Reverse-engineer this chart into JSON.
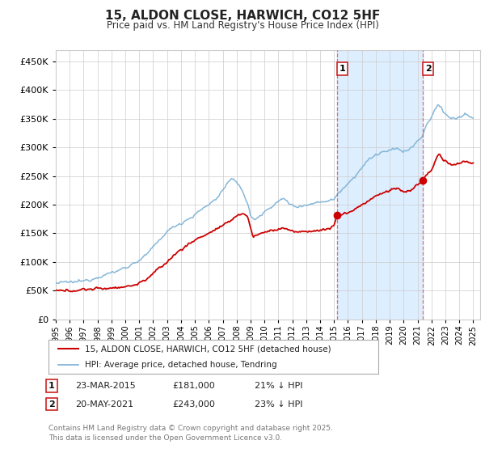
{
  "title": "15, ALDON CLOSE, HARWICH, CO12 5HF",
  "subtitle": "Price paid vs. HM Land Registry's House Price Index (HPI)",
  "legend_label_red": "15, ALDON CLOSE, HARWICH, CO12 5HF (detached house)",
  "legend_label_blue": "HPI: Average price, detached house, Tendring",
  "annotation1_date": "23-MAR-2015",
  "annotation1_price": "£181,000",
  "annotation1_hpi": "21% ↓ HPI",
  "annotation2_date": "20-MAY-2021",
  "annotation2_price": "£243,000",
  "annotation2_hpi": "23% ↓ HPI",
  "footer": "Contains HM Land Registry data © Crown copyright and database right 2025.\nThis data is licensed under the Open Government Licence v3.0.",
  "ylim": [
    0,
    470000
  ],
  "yticks": [
    0,
    50000,
    100000,
    150000,
    200000,
    250000,
    300000,
    350000,
    400000,
    450000
  ],
  "red_color": "#cc0000",
  "blue_color": "#7ab0d4",
  "shade_color": "#ddeeff",
  "grid_color": "#cccccc",
  "background_color": "#ffffff",
  "vline_color": "#e05555",
  "point1_date_year": 2015.22,
  "point2_date_year": 2021.38,
  "point1_value": 181000,
  "point2_value": 243000,
  "xmin": 1995.0,
  "xmax": 2025.5,
  "hpi_anchors": [
    [
      1995.0,
      63000
    ],
    [
      1995.5,
      64000
    ],
    [
      1996.0,
      64500
    ],
    [
      1996.5,
      65500
    ],
    [
      1997.0,
      67000
    ],
    [
      1997.5,
      70000
    ],
    [
      1998.0,
      74000
    ],
    [
      1998.5,
      78000
    ],
    [
      1999.0,
      81000
    ],
    [
      1999.5,
      85000
    ],
    [
      2000.0,
      91000
    ],
    [
      2000.5,
      96000
    ],
    [
      2001.0,
      103000
    ],
    [
      2001.5,
      112000
    ],
    [
      2002.0,
      125000
    ],
    [
      2002.5,
      140000
    ],
    [
      2003.0,
      153000
    ],
    [
      2003.5,
      162000
    ],
    [
      2004.0,
      168000
    ],
    [
      2004.5,
      175000
    ],
    [
      2005.0,
      182000
    ],
    [
      2005.5,
      192000
    ],
    [
      2006.0,
      200000
    ],
    [
      2006.5,
      210000
    ],
    [
      2007.0,
      225000
    ],
    [
      2007.3,
      237000
    ],
    [
      2007.6,
      243000
    ],
    [
      2007.9,
      240000
    ],
    [
      2008.2,
      235000
    ],
    [
      2008.5,
      220000
    ],
    [
      2008.8,
      200000
    ],
    [
      2009.0,
      180000
    ],
    [
      2009.3,
      175000
    ],
    [
      2009.6,
      178000
    ],
    [
      2010.0,
      187000
    ],
    [
      2010.5,
      198000
    ],
    [
      2011.0,
      205000
    ],
    [
      2011.3,
      210000
    ],
    [
      2011.6,
      207000
    ],
    [
      2011.9,
      200000
    ],
    [
      2012.2,
      196000
    ],
    [
      2012.5,
      198000
    ],
    [
      2012.8,
      200000
    ],
    [
      2013.2,
      200000
    ],
    [
      2013.5,
      202000
    ],
    [
      2013.8,
      204000
    ],
    [
      2014.2,
      206000
    ],
    [
      2014.5,
      207000
    ],
    [
      2014.8,
      208000
    ],
    [
      2015.0,
      210000
    ],
    [
      2015.3,
      220000
    ],
    [
      2015.6,
      228000
    ],
    [
      2016.0,
      238000
    ],
    [
      2016.5,
      250000
    ],
    [
      2017.0,
      265000
    ],
    [
      2017.5,
      278000
    ],
    [
      2018.0,
      287000
    ],
    [
      2018.5,
      292000
    ],
    [
      2019.0,
      293000
    ],
    [
      2019.3,
      296000
    ],
    [
      2019.6,
      298000
    ],
    [
      2020.0,
      293000
    ],
    [
      2020.3,
      295000
    ],
    [
      2020.6,
      300000
    ],
    [
      2021.0,
      310000
    ],
    [
      2021.3,
      318000
    ],
    [
      2021.5,
      330000
    ],
    [
      2021.8,
      345000
    ],
    [
      2022.0,
      352000
    ],
    [
      2022.3,
      368000
    ],
    [
      2022.5,
      375000
    ],
    [
      2022.7,
      370000
    ],
    [
      2023.0,
      358000
    ],
    [
      2023.3,
      352000
    ],
    [
      2023.6,
      350000
    ],
    [
      2024.0,
      351000
    ],
    [
      2024.3,
      356000
    ],
    [
      2024.6,
      355000
    ],
    [
      2025.0,
      350000
    ]
  ],
  "red_anchors": [
    [
      1995.0,
      50000
    ],
    [
      1995.5,
      49500
    ],
    [
      1996.0,
      50000
    ],
    [
      1996.5,
      51000
    ],
    [
      1997.0,
      52000
    ],
    [
      1997.5,
      53000
    ],
    [
      1998.0,
      53500
    ],
    [
      1998.5,
      54000
    ],
    [
      1999.0,
      55000
    ],
    [
      1999.5,
      56000
    ],
    [
      2000.0,
      57000
    ],
    [
      2000.5,
      59000
    ],
    [
      2001.0,
      63000
    ],
    [
      2001.5,
      70000
    ],
    [
      2002.0,
      80000
    ],
    [
      2002.5,
      90000
    ],
    [
      2003.0,
      100000
    ],
    [
      2003.5,
      112000
    ],
    [
      2004.0,
      122000
    ],
    [
      2004.5,
      130000
    ],
    [
      2005.0,
      138000
    ],
    [
      2005.5,
      145000
    ],
    [
      2006.0,
      150000
    ],
    [
      2006.5,
      157000
    ],
    [
      2007.0,
      163000
    ],
    [
      2007.5,
      170000
    ],
    [
      2007.8,
      178000
    ],
    [
      2008.1,
      182000
    ],
    [
      2008.5,
      185000
    ],
    [
      2008.8,
      178000
    ],
    [
      2009.0,
      160000
    ],
    [
      2009.2,
      143000
    ],
    [
      2009.5,
      148000
    ],
    [
      2010.0,
      152000
    ],
    [
      2010.5,
      155000
    ],
    [
      2011.0,
      157000
    ],
    [
      2011.3,
      160000
    ],
    [
      2011.6,
      158000
    ],
    [
      2012.0,
      153000
    ],
    [
      2012.5,
      152000
    ],
    [
      2013.0,
      153000
    ],
    [
      2013.5,
      155000
    ],
    [
      2014.0,
      155000
    ],
    [
      2014.5,
      157000
    ],
    [
      2015.0,
      164000
    ],
    [
      2015.22,
      181000
    ],
    [
      2015.5,
      183000
    ],
    [
      2016.0,
      186000
    ],
    [
      2016.5,
      192000
    ],
    [
      2017.0,
      200000
    ],
    [
      2017.5,
      207000
    ],
    [
      2018.0,
      215000
    ],
    [
      2018.5,
      220000
    ],
    [
      2019.0,
      225000
    ],
    [
      2019.3,
      228000
    ],
    [
      2019.6,
      228000
    ],
    [
      2020.0,
      222000
    ],
    [
      2020.5,
      225000
    ],
    [
      2021.0,
      235000
    ],
    [
      2021.38,
      243000
    ],
    [
      2021.6,
      250000
    ],
    [
      2022.0,
      260000
    ],
    [
      2022.3,
      278000
    ],
    [
      2022.5,
      288000
    ],
    [
      2022.7,
      283000
    ],
    [
      2023.0,
      275000
    ],
    [
      2023.3,
      270000
    ],
    [
      2023.6,
      268000
    ],
    [
      2024.0,
      272000
    ],
    [
      2024.3,
      276000
    ],
    [
      2024.6,
      274000
    ],
    [
      2025.0,
      273000
    ]
  ]
}
